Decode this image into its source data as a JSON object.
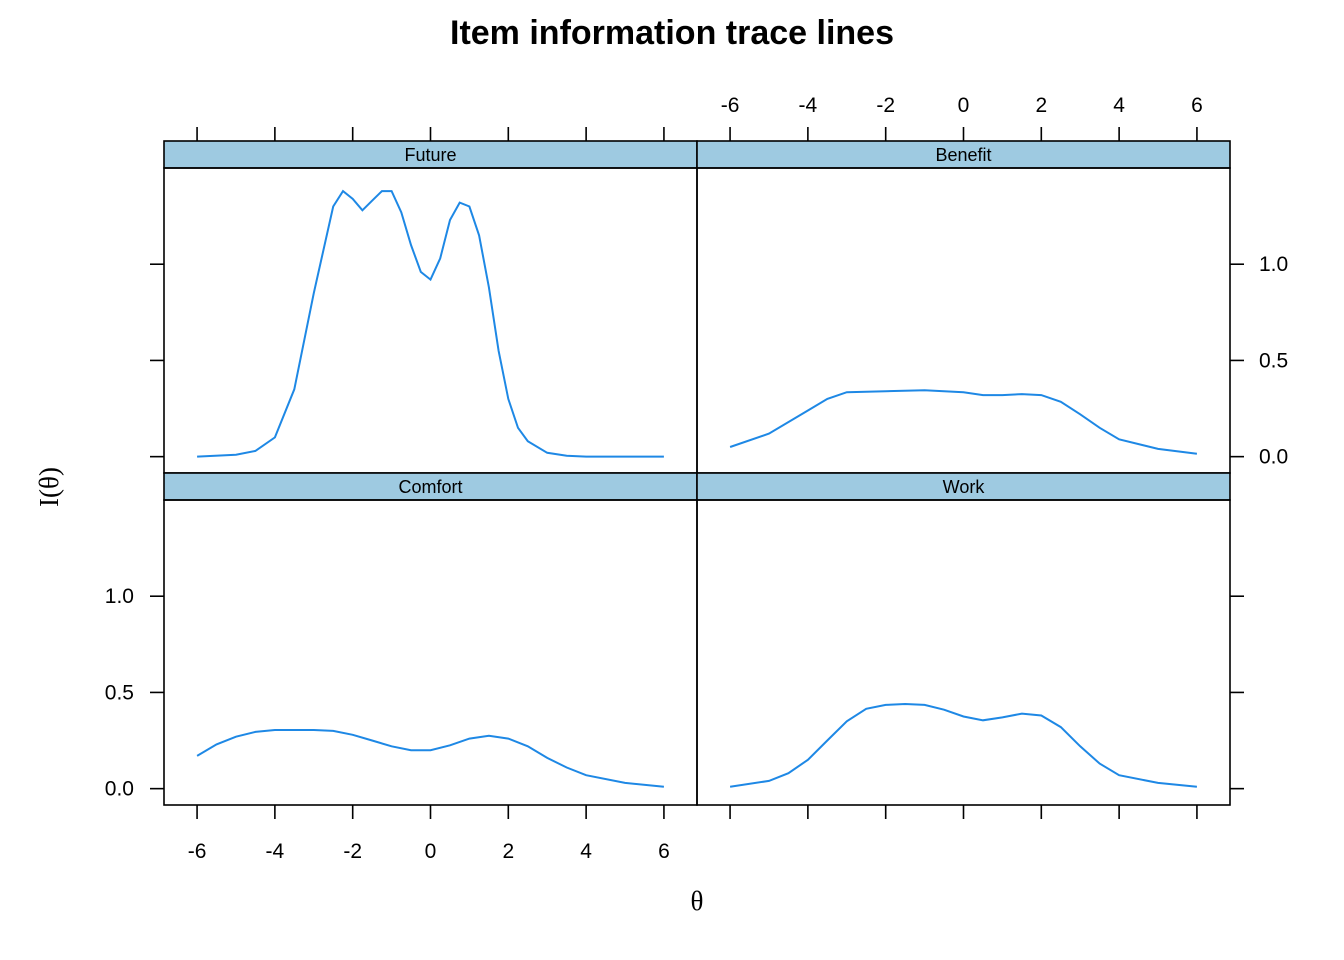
{
  "chart_data": {
    "type": "line",
    "title": "Item information trace lines",
    "xlabel": "θ",
    "ylabel": "I(θ)",
    "xlim": [
      -6.85,
      6.85
    ],
    "ylim": [
      -0.085,
      1.5
    ],
    "x_ticks": [
      -6,
      -4,
      -2,
      0,
      2,
      4,
      6
    ],
    "x_tick_labels": [
      "-6",
      "-4",
      "-2",
      "0",
      "2",
      "4",
      "6"
    ],
    "y_ticks": [
      0.0,
      0.5,
      1.0
    ],
    "y_tick_labels": [
      "0.0",
      "0.5",
      "1.0"
    ],
    "grid": false,
    "layout": "2x2 panels",
    "line_color": "#1e88e5",
    "strip_color": "#9ecae1",
    "panels": [
      {
        "name": "Future",
        "row": "top",
        "col": "left",
        "x": [
          -6,
          -5,
          -4.5,
          -4,
          -3.5,
          -3,
          -2.5,
          -2.25,
          -2,
          -1.75,
          -1.5,
          -1.25,
          -1,
          -0.75,
          -0.5,
          -0.25,
          0,
          0.25,
          0.5,
          0.75,
          1,
          1.25,
          1.5,
          1.75,
          2,
          2.25,
          2.5,
          3,
          3.5,
          4,
          5,
          6
        ],
        "y": [
          0.0,
          0.01,
          0.03,
          0.1,
          0.35,
          0.85,
          1.3,
          1.38,
          1.34,
          1.28,
          1.33,
          1.38,
          1.38,
          1.27,
          1.1,
          0.96,
          0.92,
          1.03,
          1.23,
          1.32,
          1.3,
          1.15,
          0.88,
          0.55,
          0.3,
          0.15,
          0.08,
          0.02,
          0.005,
          0.0,
          0.0,
          0.0
        ]
      },
      {
        "name": "Benefit",
        "row": "top",
        "col": "right",
        "x": [
          -6,
          -5,
          -4,
          -3.5,
          -3,
          -2,
          -1,
          0,
          0.5,
          1,
          1.5,
          2,
          2.5,
          3,
          3.5,
          4,
          5,
          6
        ],
        "y": [
          0.05,
          0.12,
          0.24,
          0.3,
          0.335,
          0.34,
          0.345,
          0.335,
          0.32,
          0.32,
          0.325,
          0.32,
          0.285,
          0.22,
          0.15,
          0.09,
          0.04,
          0.015
        ]
      },
      {
        "name": "Comfort",
        "row": "bottom",
        "col": "left",
        "x": [
          -6,
          -5.5,
          -5,
          -4.5,
          -4,
          -3.5,
          -3,
          -2.5,
          -2,
          -1.5,
          -1,
          -0.5,
          0,
          0.5,
          1,
          1.5,
          2,
          2.5,
          3,
          3.5,
          4,
          5,
          6
        ],
        "y": [
          0.17,
          0.23,
          0.27,
          0.295,
          0.305,
          0.305,
          0.305,
          0.3,
          0.28,
          0.25,
          0.22,
          0.2,
          0.2,
          0.225,
          0.26,
          0.275,
          0.26,
          0.22,
          0.16,
          0.11,
          0.07,
          0.03,
          0.01
        ]
      },
      {
        "name": "Work",
        "row": "bottom",
        "col": "right",
        "x": [
          -6,
          -5,
          -4.5,
          -4,
          -3.5,
          -3,
          -2.5,
          -2,
          -1.5,
          -1,
          -0.5,
          0,
          0.5,
          1,
          1.5,
          2,
          2.5,
          3,
          3.5,
          4,
          5,
          6
        ],
        "y": [
          0.01,
          0.04,
          0.08,
          0.15,
          0.25,
          0.35,
          0.415,
          0.435,
          0.44,
          0.435,
          0.41,
          0.375,
          0.355,
          0.37,
          0.39,
          0.38,
          0.32,
          0.22,
          0.13,
          0.07,
          0.03,
          0.01
        ]
      }
    ]
  }
}
